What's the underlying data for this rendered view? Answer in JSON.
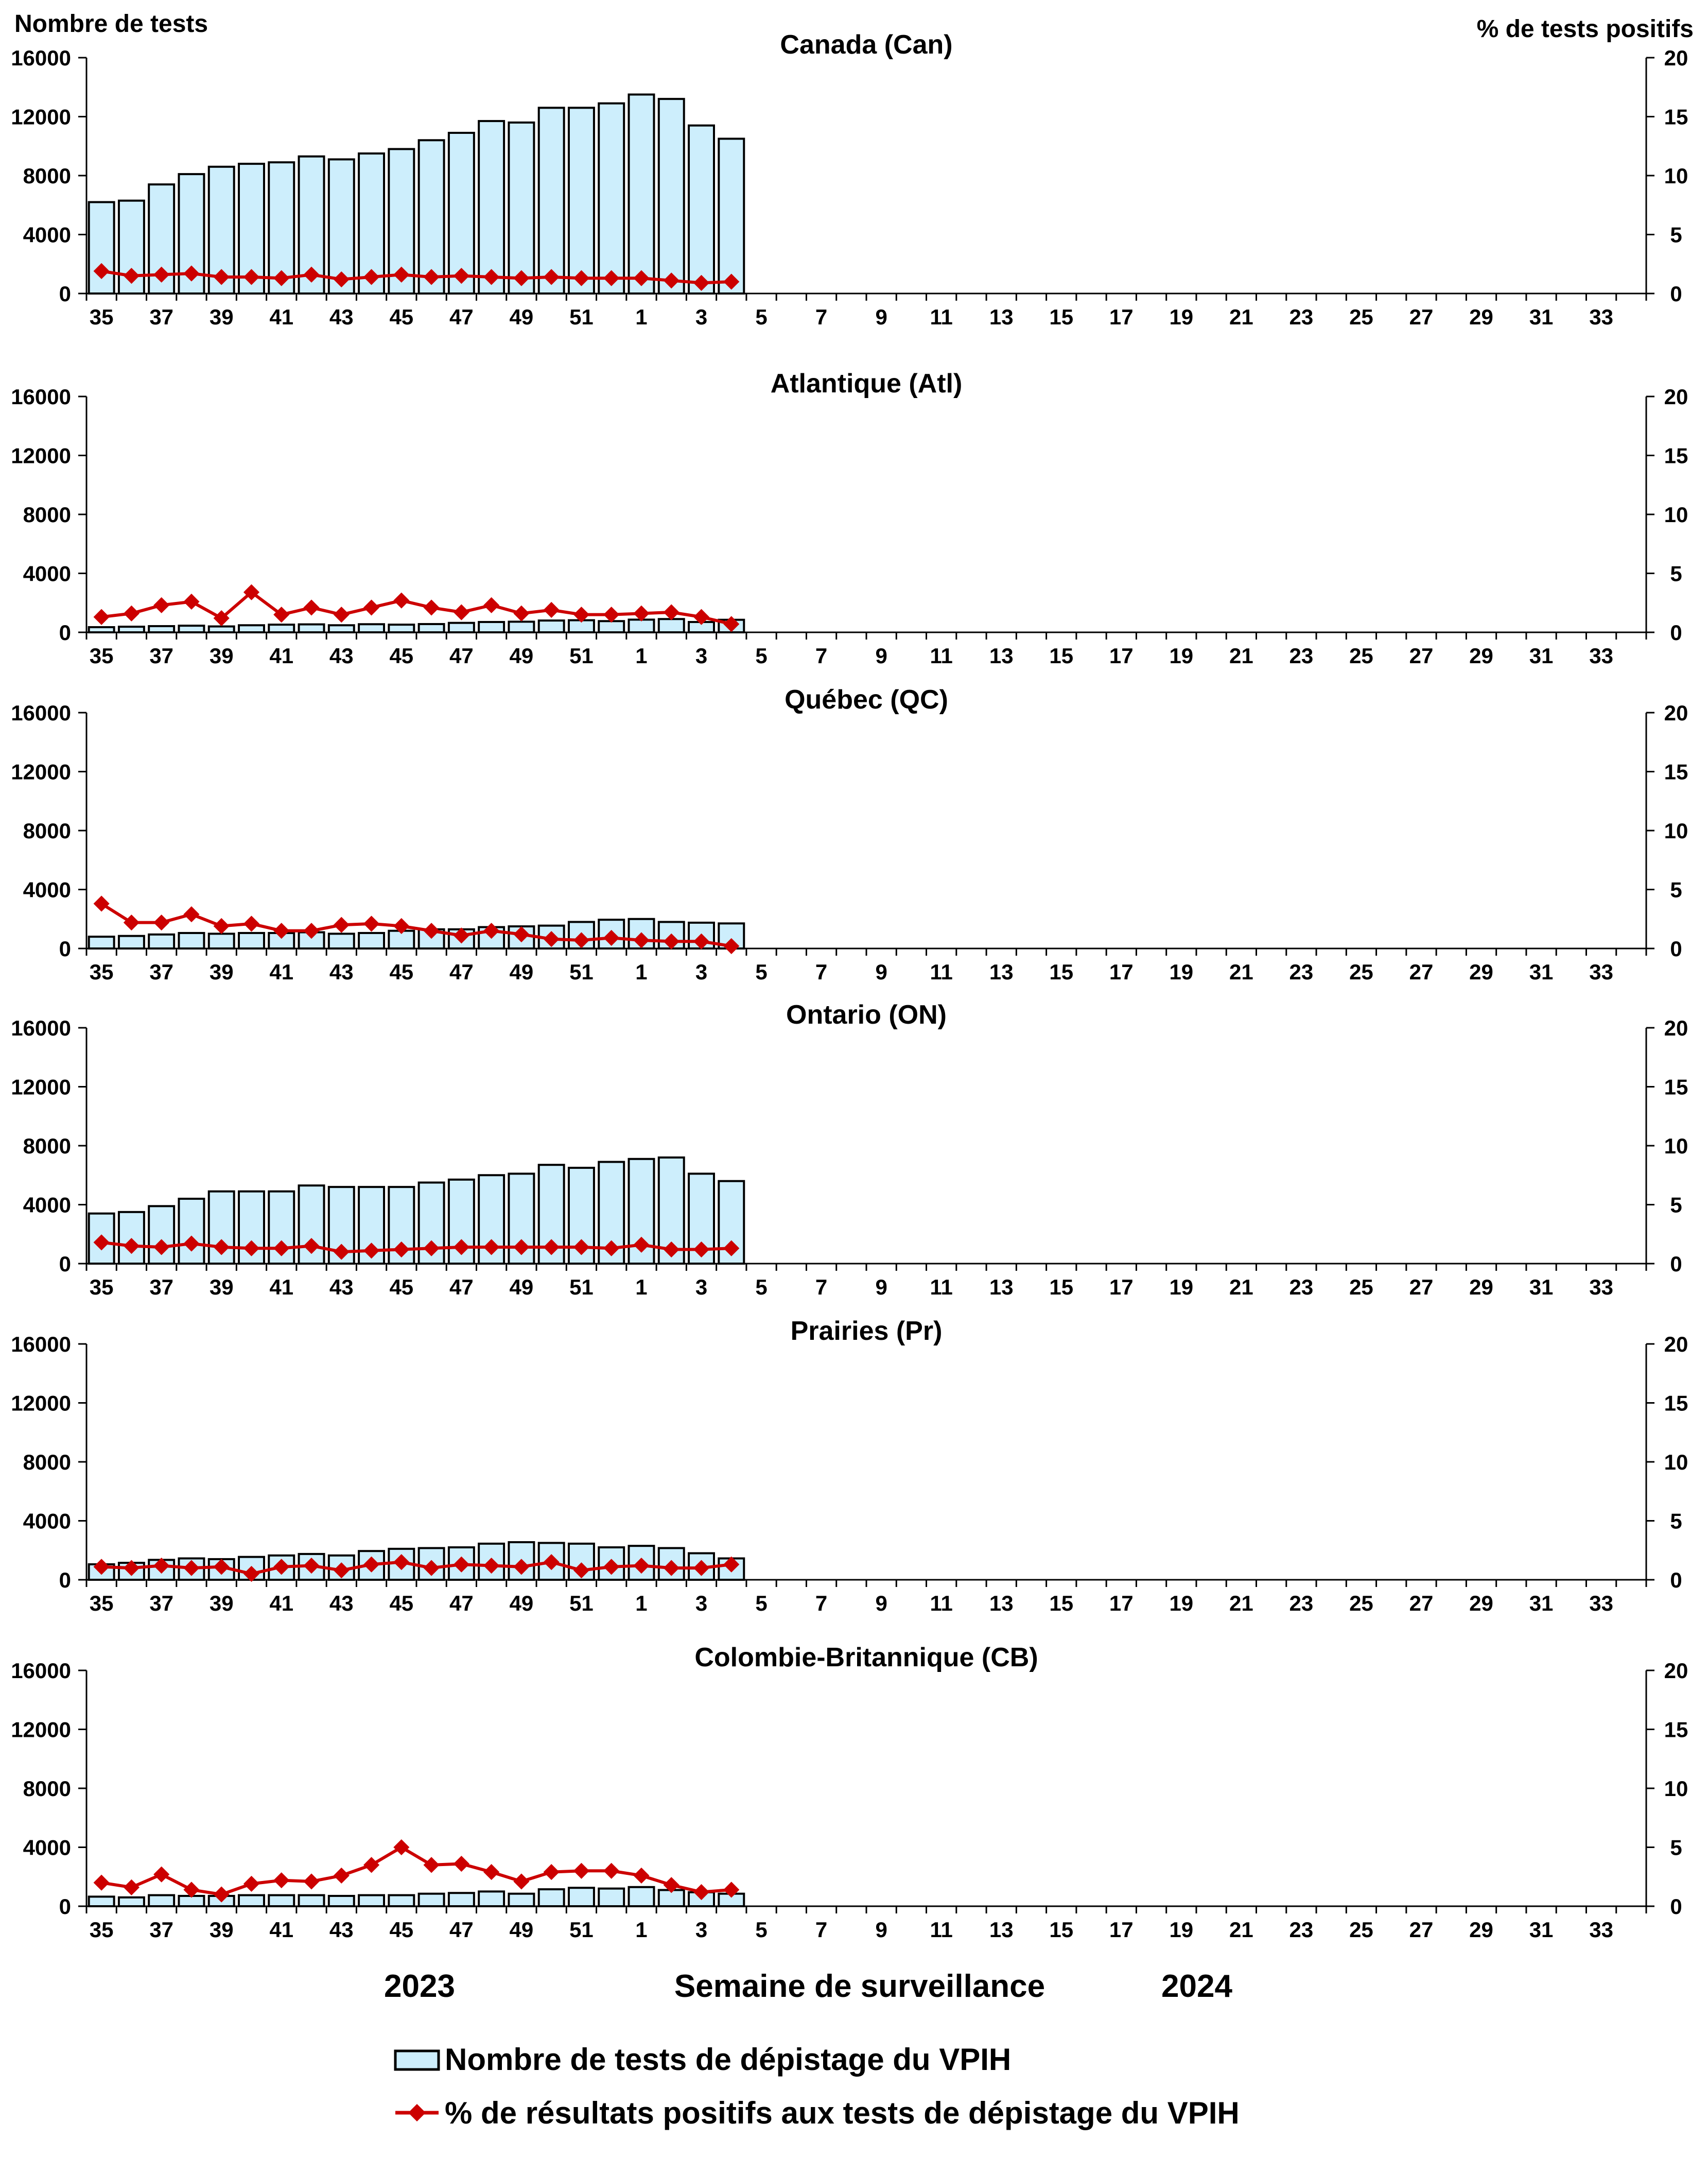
{
  "header": {
    "left_axis_label": "Nombre de tests",
    "right_axis_label": "% de tests positifs"
  },
  "footer": {
    "year_left": "2023",
    "xlabel": "Semaine de surveillance",
    "year_right": "2024"
  },
  "legend": {
    "bar_label": "Nombre de tests de dépistage du VPIH",
    "line_label": "% de résultats positifs aux tests de dépistage du VPIH"
  },
  "colors": {
    "bar_fill": "#cdeefc",
    "bar_stroke": "#000000",
    "line": "#cc0000",
    "marker": "#cc0000"
  },
  "chart_data": [
    {
      "type": "bar",
      "title": "Canada (Can)",
      "weeks": [
        "35",
        "36",
        "37",
        "38",
        "39",
        "40",
        "41",
        "42",
        "43",
        "44",
        "45",
        "46",
        "47",
        "48",
        "49",
        "50",
        "51",
        "52",
        "1",
        "2",
        "3",
        "4",
        "5",
        "6",
        "7",
        "8",
        "9",
        "10",
        "11",
        "12",
        "13",
        "14",
        "15",
        "16",
        "17",
        "18",
        "19",
        "20",
        "21",
        "22",
        "23",
        "24",
        "25",
        "26",
        "27",
        "28",
        "29",
        "30",
        "31",
        "32",
        "33",
        "34"
      ],
      "tick_labels": [
        "35",
        "37",
        "39",
        "41",
        "43",
        "45",
        "47",
        "49",
        "51",
        "1",
        "3",
        "5",
        "7",
        "9",
        "11",
        "13",
        "15",
        "17",
        "19",
        "21",
        "23",
        "25",
        "27",
        "29",
        "31",
        "33"
      ],
      "ylabel_left": "Nombre de tests",
      "ylabel_right": "% de tests positifs",
      "ylim_left": [
        0,
        16000
      ],
      "ylim_right": [
        0,
        20
      ],
      "yticks_left": [
        "0",
        "4000",
        "8000",
        "12000",
        "16000"
      ],
      "yticks_right": [
        "0",
        "5",
        "10",
        "15",
        "20"
      ],
      "series": [
        {
          "name": "Nombre de tests de dépistage du VPIH",
          "type": "bar",
          "values": [
            6200,
            6300,
            7400,
            8100,
            8600,
            8800,
            8900,
            9300,
            9100,
            9500,
            9800,
            10400,
            10900,
            11700,
            11600,
            12600,
            12600,
            12900,
            13500,
            13200,
            11400,
            10500
          ]
        },
        {
          "name": "% de résultats positifs aux tests de dépistage du VPIH",
          "type": "line",
          "values": [
            1.9,
            1.5,
            1.6,
            1.7,
            1.4,
            1.4,
            1.3,
            1.6,
            1.2,
            1.4,
            1.6,
            1.4,
            1.5,
            1.4,
            1.3,
            1.4,
            1.3,
            1.3,
            1.3,
            1.1,
            0.9,
            1.0
          ]
        }
      ]
    },
    {
      "type": "bar",
      "title": "Atlantique (Atl)",
      "weeks": [
        "35",
        "36",
        "37",
        "38",
        "39",
        "40",
        "41",
        "42",
        "43",
        "44",
        "45",
        "46",
        "47",
        "48",
        "49",
        "50",
        "51",
        "52",
        "1",
        "2",
        "3",
        "4",
        "5",
        "6",
        "7",
        "8",
        "9",
        "10",
        "11",
        "12",
        "13",
        "14",
        "15",
        "16",
        "17",
        "18",
        "19",
        "20",
        "21",
        "22",
        "23",
        "24",
        "25",
        "26",
        "27",
        "28",
        "29",
        "30",
        "31",
        "32",
        "33",
        "34"
      ],
      "tick_labels": [
        "35",
        "37",
        "39",
        "41",
        "43",
        "45",
        "47",
        "49",
        "51",
        "1",
        "3",
        "5",
        "7",
        "9",
        "11",
        "13",
        "15",
        "17",
        "19",
        "21",
        "23",
        "25",
        "27",
        "29",
        "31",
        "33"
      ],
      "ylim_left": [
        0,
        16000
      ],
      "ylim_right": [
        0,
        20
      ],
      "yticks_left": [
        "0",
        "4000",
        "8000",
        "12000",
        "16000"
      ],
      "yticks_right": [
        "0",
        "5",
        "10",
        "15",
        "20"
      ],
      "series": [
        {
          "name": "Nombre de tests de dépistage du VPIH",
          "type": "bar",
          "values": [
            350,
            380,
            420,
            450,
            400,
            480,
            520,
            540,
            480,
            550,
            520,
            560,
            640,
            700,
            720,
            800,
            820,
            760,
            860,
            900,
            700,
            850
          ]
        },
        {
          "name": "% de résultats positifs aux tests de dépistage du VPIH",
          "type": "line",
          "values": [
            1.3,
            1.6,
            2.3,
            2.6,
            1.2,
            3.4,
            1.5,
            2.1,
            1.5,
            2.1,
            2.7,
            2.1,
            1.7,
            2.3,
            1.6,
            1.9,
            1.5,
            1.5,
            1.6,
            1.7,
            1.3,
            0.7
          ]
        }
      ]
    },
    {
      "type": "bar",
      "title": "Québec (QC)",
      "weeks": [
        "35",
        "36",
        "37",
        "38",
        "39",
        "40",
        "41",
        "42",
        "43",
        "44",
        "45",
        "46",
        "47",
        "48",
        "49",
        "50",
        "51",
        "52",
        "1",
        "2",
        "3",
        "4",
        "5",
        "6",
        "7",
        "8",
        "9",
        "10",
        "11",
        "12",
        "13",
        "14",
        "15",
        "16",
        "17",
        "18",
        "19",
        "20",
        "21",
        "22",
        "23",
        "24",
        "25",
        "26",
        "27",
        "28",
        "29",
        "30",
        "31",
        "32",
        "33",
        "34"
      ],
      "tick_labels": [
        "35",
        "37",
        "39",
        "41",
        "43",
        "45",
        "47",
        "49",
        "51",
        "1",
        "3",
        "5",
        "7",
        "9",
        "11",
        "13",
        "15",
        "17",
        "19",
        "21",
        "23",
        "25",
        "27",
        "29",
        "31",
        "33"
      ],
      "ylim_left": [
        0,
        16000
      ],
      "ylim_right": [
        0,
        20
      ],
      "yticks_left": [
        "0",
        "4000",
        "8000",
        "12000",
        "16000"
      ],
      "yticks_right": [
        "0",
        "5",
        "10",
        "15",
        "20"
      ],
      "series": [
        {
          "name": "Nombre de tests de dépistage du VPIH",
          "type": "bar",
          "values": [
            800,
            850,
            950,
            1050,
            1000,
            1050,
            1050,
            1100,
            1000,
            1050,
            1200,
            1300,
            1300,
            1450,
            1500,
            1550,
            1800,
            1950,
            2000,
            1800,
            1750,
            1700
          ]
        },
        {
          "name": "% de résultats positifs aux tests de dépistage du VPIH",
          "type": "line",
          "values": [
            3.8,
            2.2,
            2.2,
            2.9,
            1.9,
            2.1,
            1.5,
            1.5,
            2.0,
            2.1,
            1.9,
            1.5,
            1.1,
            1.5,
            1.2,
            0.8,
            0.7,
            0.9,
            0.7,
            0.6,
            0.6,
            0.2
          ]
        }
      ]
    },
    {
      "type": "bar",
      "title": "Ontario (ON)",
      "weeks": [
        "35",
        "36",
        "37",
        "38",
        "39",
        "40",
        "41",
        "42",
        "43",
        "44",
        "45",
        "46",
        "47",
        "48",
        "49",
        "50",
        "51",
        "52",
        "1",
        "2",
        "3",
        "4",
        "5",
        "6",
        "7",
        "8",
        "9",
        "10",
        "11",
        "12",
        "13",
        "14",
        "15",
        "16",
        "17",
        "18",
        "19",
        "20",
        "21",
        "22",
        "23",
        "24",
        "25",
        "26",
        "27",
        "28",
        "29",
        "30",
        "31",
        "32",
        "33",
        "34"
      ],
      "tick_labels": [
        "35",
        "37",
        "39",
        "41",
        "43",
        "45",
        "47",
        "49",
        "51",
        "1",
        "3",
        "5",
        "7",
        "9",
        "11",
        "13",
        "15",
        "17",
        "19",
        "21",
        "23",
        "25",
        "27",
        "29",
        "31",
        "33"
      ],
      "ylim_left": [
        0,
        16000
      ],
      "ylim_right": [
        0,
        20
      ],
      "yticks_left": [
        "0",
        "4000",
        "8000",
        "12000",
        "16000"
      ],
      "yticks_right": [
        "0",
        "5",
        "10",
        "15",
        "20"
      ],
      "series": [
        {
          "name": "Nombre de tests de dépistage du VPIH",
          "type": "bar",
          "values": [
            3400,
            3500,
            3900,
            4400,
            4900,
            4900,
            4900,
            5300,
            5200,
            5200,
            5200,
            5500,
            5700,
            6000,
            6100,
            6700,
            6500,
            6900,
            7100,
            7200,
            6100,
            5600
          ]
        },
        {
          "name": "% de résultats positifs aux tests de dépistage du VPIH",
          "type": "line",
          "values": [
            1.8,
            1.5,
            1.4,
            1.7,
            1.4,
            1.3,
            1.3,
            1.5,
            1.0,
            1.1,
            1.2,
            1.3,
            1.4,
            1.4,
            1.4,
            1.4,
            1.4,
            1.3,
            1.6,
            1.2,
            1.2,
            1.3
          ]
        }
      ]
    },
    {
      "type": "bar",
      "title": "Prairies (Pr)",
      "weeks": [
        "35",
        "36",
        "37",
        "38",
        "39",
        "40",
        "41",
        "42",
        "43",
        "44",
        "45",
        "46",
        "47",
        "48",
        "49",
        "50",
        "51",
        "52",
        "1",
        "2",
        "3",
        "4",
        "5",
        "6",
        "7",
        "8",
        "9",
        "10",
        "11",
        "12",
        "13",
        "14",
        "15",
        "16",
        "17",
        "18",
        "19",
        "20",
        "21",
        "22",
        "23",
        "24",
        "25",
        "26",
        "27",
        "28",
        "29",
        "30",
        "31",
        "32",
        "33",
        "34"
      ],
      "tick_labels": [
        "35",
        "37",
        "39",
        "41",
        "43",
        "45",
        "47",
        "49",
        "51",
        "1",
        "3",
        "5",
        "7",
        "9",
        "11",
        "13",
        "15",
        "17",
        "19",
        "21",
        "23",
        "25",
        "27",
        "29",
        "31",
        "33"
      ],
      "ylim_left": [
        0,
        16000
      ],
      "ylim_right": [
        0,
        20
      ],
      "yticks_left": [
        "0",
        "4000",
        "8000",
        "12000",
        "16000"
      ],
      "yticks_right": [
        "0",
        "5",
        "10",
        "15",
        "20"
      ],
      "series": [
        {
          "name": "Nombre de tests de dépistage du VPIH",
          "type": "bar",
          "values": [
            1050,
            1150,
            1350,
            1450,
            1400,
            1550,
            1650,
            1750,
            1650,
            1950,
            2100,
            2150,
            2200,
            2450,
            2550,
            2500,
            2450,
            2200,
            2300,
            2150,
            1800,
            1450
          ]
        },
        {
          "name": "% de résultats positifs aux tests de dépistage du VPIH",
          "type": "line",
          "values": [
            1.1,
            1.0,
            1.2,
            1.0,
            1.1,
            0.5,
            1.1,
            1.2,
            0.8,
            1.3,
            1.5,
            1.0,
            1.3,
            1.2,
            1.1,
            1.5,
            0.8,
            1.1,
            1.2,
            1.0,
            1.0,
            1.3
          ]
        }
      ]
    },
    {
      "type": "bar",
      "title": "Colombie-Britannique (CB)",
      "weeks": [
        "35",
        "36",
        "37",
        "38",
        "39",
        "40",
        "41",
        "42",
        "43",
        "44",
        "45",
        "46",
        "47",
        "48",
        "49",
        "50",
        "51",
        "52",
        "1",
        "2",
        "3",
        "4",
        "5",
        "6",
        "7",
        "8",
        "9",
        "10",
        "11",
        "12",
        "13",
        "14",
        "15",
        "16",
        "17",
        "18",
        "19",
        "20",
        "21",
        "22",
        "23",
        "24",
        "25",
        "26",
        "27",
        "28",
        "29",
        "30",
        "31",
        "32",
        "33",
        "34"
      ],
      "tick_labels": [
        "35",
        "37",
        "39",
        "41",
        "43",
        "45",
        "47",
        "49",
        "51",
        "1",
        "3",
        "5",
        "7",
        "9",
        "11",
        "13",
        "15",
        "17",
        "19",
        "21",
        "23",
        "25",
        "27",
        "29",
        "31",
        "33"
      ],
      "ylim_left": [
        0,
        16000
      ],
      "ylim_right": [
        0,
        20
      ],
      "yticks_left": [
        "0",
        "4000",
        "8000",
        "12000",
        "16000"
      ],
      "yticks_right": [
        "0",
        "5",
        "10",
        "15",
        "20"
      ],
      "series": [
        {
          "name": "Nombre de tests de dépistage du VPIH",
          "type": "bar",
          "values": [
            650,
            600,
            750,
            700,
            700,
            750,
            750,
            750,
            700,
            750,
            750,
            850,
            900,
            1000,
            850,
            1150,
            1250,
            1200,
            1300,
            1100,
            950,
            850
          ]
        },
        {
          "name": "% de résultats positifs aux tests de dépistage du VPIH",
          "type": "line",
          "values": [
            2.0,
            1.6,
            2.7,
            1.4,
            1.0,
            1.9,
            2.2,
            2.1,
            2.6,
            3.5,
            5.0,
            3.5,
            3.6,
            2.9,
            2.1,
            2.9,
            3.0,
            3.0,
            2.6,
            1.8,
            1.2,
            1.4
          ]
        }
      ]
    }
  ]
}
